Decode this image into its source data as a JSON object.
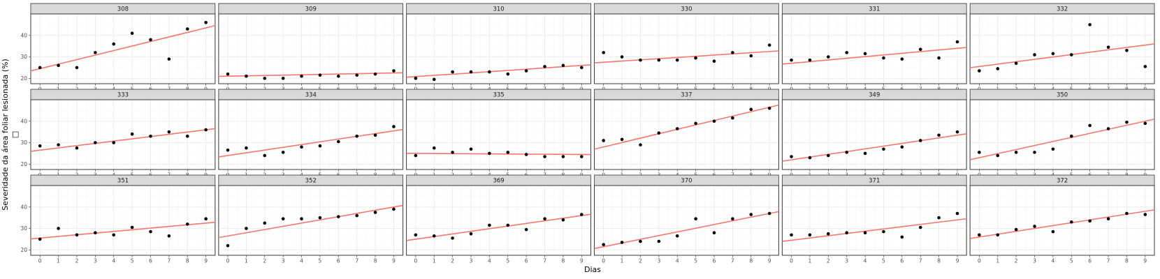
{
  "chart_data": {
    "type": "scatter",
    "facet_layout": "wrap",
    "xlabel": "Dias",
    "ylabel": "Severidade da área foliar lesionada (%)",
    "ylabel_extra_glyph": "□",
    "x_ticks": [
      0,
      1,
      2,
      3,
      4,
      5,
      6,
      7,
      8,
      9
    ],
    "x_tick_labels": [
      "0",
      "1",
      "2",
      "3",
      "4",
      "5",
      "6",
      "7",
      "8",
      "9"
    ],
    "y_ticks": [
      20,
      30,
      40
    ],
    "y_tick_labels": [
      "20",
      "30",
      "40"
    ],
    "xlim": [
      -0.5,
      9.5
    ],
    "ylim": [
      17.5,
      50
    ],
    "grid": true,
    "fit_line_color": "#f8766d",
    "point_color": "#000000",
    "strip_color": "#d9d9d9",
    "panels": [
      {
        "label": "308",
        "y": [
          25,
          26,
          25,
          32,
          36,
          41,
          38,
          29,
          43,
          46
        ],
        "fit": [
          24.5,
          43.5
        ]
      },
      {
        "label": "309",
        "y": [
          22,
          21,
          20,
          20,
          21,
          21.5,
          21,
          21.5,
          22,
          23.5
        ],
        "fit": [
          21,
          22.5
        ]
      },
      {
        "label": "310",
        "y": [
          20,
          19.5,
          23,
          23,
          23,
          22,
          23.5,
          25.5,
          26,
          25
        ],
        "fit": [
          20.8,
          26
        ]
      },
      {
        "label": "330",
        "y": [
          32,
          30,
          28.5,
          28.5,
          28.5,
          29.5,
          28,
          32,
          30.5,
          35.5
        ],
        "fit": [
          27.5,
          32.5
        ]
      },
      {
        "label": "331",
        "y": [
          28.5,
          28.5,
          30,
          32,
          31.5,
          29.5,
          29,
          33.5,
          29.5,
          37
        ],
        "fit": [
          27,
          34
        ]
      },
      {
        "label": "332",
        "y": [
          23.5,
          24.5,
          27,
          31,
          31.5,
          31,
          45,
          34.5,
          33,
          25.5
        ],
        "fit": [
          25.5,
          35.5
        ]
      },
      {
        "label": "333",
        "y": [
          28.5,
          29,
          27.5,
          30,
          30,
          34,
          33,
          35,
          33,
          36
        ],
        "fit": [
          26.5,
          36
        ]
      },
      {
        "label": "334",
        "y": [
          26.5,
          27.5,
          24,
          25.5,
          28,
          28.5,
          30.5,
          33,
          33.5,
          37.5
        ],
        "fit": [
          24,
          35.5
        ]
      },
      {
        "label": "335",
        "y": [
          24,
          27.5,
          25.5,
          27,
          25,
          25.5,
          24.5,
          23.5,
          23.5,
          23.5
        ],
        "fit": [
          25,
          24.5
        ]
      },
      {
        "label": "337",
        "y": [
          31,
          31.5,
          29,
          34.5,
          36.5,
          39,
          40,
          41.5,
          45.5,
          46
        ],
        "fit": [
          28,
          46.5
        ]
      },
      {
        "label": "349",
        "y": [
          23.5,
          23,
          24,
          25.5,
          25,
          27,
          28,
          31,
          33.5,
          35
        ],
        "fit": [
          22,
          33.5
        ]
      },
      {
        "label": "350",
        "y": [
          25.5,
          24,
          25.5,
          25.5,
          27,
          33,
          38,
          36.5,
          39.5,
          39
        ],
        "fit": [
          23,
          40
        ]
      },
      {
        "label": "351",
        "y": [
          25,
          30,
          27,
          28,
          27,
          30.5,
          28.5,
          26.5,
          32,
          34.5
        ],
        "fit": [
          25.5,
          32.5
        ]
      },
      {
        "label": "352",
        "y": [
          22,
          30,
          32.5,
          34.5,
          34.5,
          35,
          35.5,
          36,
          37.5,
          39
        ],
        "fit": [
          26.5,
          40
        ]
      },
      {
        "label": "369",
        "y": [
          27,
          26.5,
          25.5,
          27.5,
          31.5,
          31.5,
          29.5,
          34.5,
          34,
          36.5
        ],
        "fit": [
          25,
          36
        ]
      },
      {
        "label": "370",
        "y": [
          22.5,
          23.5,
          24,
          24,
          26.5,
          34.5,
          28,
          34.5,
          36.5,
          37
        ],
        "fit": [
          21.5,
          37
        ]
      },
      {
        "label": "371",
        "y": [
          27,
          27,
          27.5,
          28,
          28,
          28.5,
          26,
          30.5,
          35,
          37
        ],
        "fit": [
          24.5,
          34
        ]
      },
      {
        "label": "372",
        "y": [
          27,
          27,
          29.5,
          31,
          28.5,
          33,
          33.5,
          34.5,
          37,
          36.5
        ],
        "fit": [
          26,
          38
        ]
      }
    ]
  }
}
